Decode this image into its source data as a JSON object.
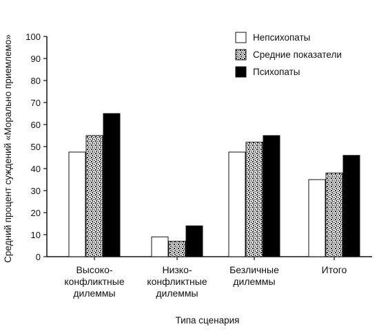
{
  "chart_data": {
    "type": "bar",
    "title": "",
    "xlabel": "Типа сценария",
    "ylabel": "Средний процент суждений «Морально приемлемо»",
    "ylim": [
      0,
      100
    ],
    "yticks": [
      0,
      10,
      20,
      30,
      40,
      50,
      60,
      70,
      80,
      90,
      100
    ],
    "grid": false,
    "legend_position": "top-right",
    "categories": [
      [
        "Высоко-",
        "конфликтные",
        "дилеммы"
      ],
      [
        "Низко-",
        "конфликтные",
        "дилеммы"
      ],
      [
        "Безличные",
        "дилеммы"
      ],
      [
        "Итого"
      ]
    ],
    "series": [
      {
        "name": "Непсихопаты",
        "values": [
          47.5,
          9,
          47.5,
          35
        ],
        "fill": "#ffffff"
      },
      {
        "name": "Средние показатели",
        "values": [
          55,
          7,
          52,
          38
        ],
        "fill": "stipple"
      },
      {
        "name": "Психопаты",
        "values": [
          65,
          14,
          55,
          46
        ],
        "fill": "#000000"
      }
    ]
  }
}
